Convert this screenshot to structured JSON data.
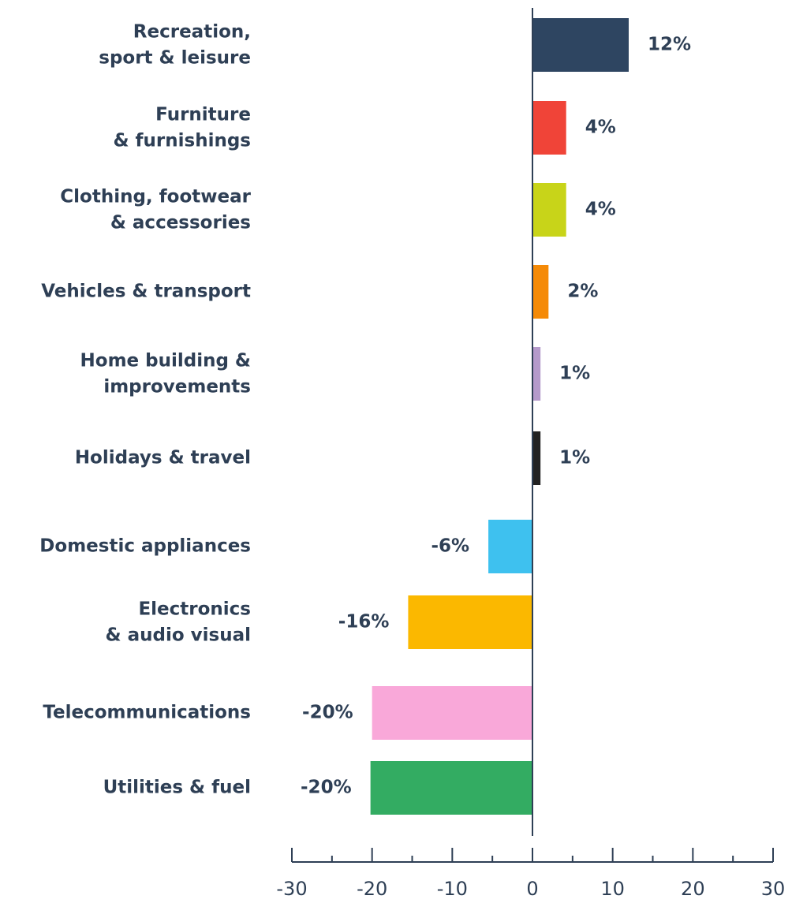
{
  "chart_data": {
    "type": "barh",
    "categories": [
      "Recreation,\nsport & leisure",
      "Furniture\n& furnishings",
      "Clothing, footwear\n& accessories",
      "Vehicles & transport",
      "Home building &\nimprovements",
      "Holidays & travel",
      "Domestic appliances",
      "Electronics\n& audio visual",
      "Telecommunications",
      "Utilities & fuel"
    ],
    "values": [
      12,
      4.2,
      4.2,
      2,
      1,
      1,
      -5.5,
      -15.5,
      -20,
      -20.2
    ],
    "value_labels": [
      "12%",
      "4%",
      "4%",
      "2%",
      "1%",
      "1%",
      "-6%",
      "-16%",
      "-20%",
      "-20%"
    ],
    "colors": [
      "#2e4561",
      "#f04438",
      "#c8d419",
      "#f58a07",
      "#b59acb",
      "#222222",
      "#3ec1ef",
      "#fbb800",
      "#f9a8d9",
      "#33ac62"
    ],
    "xlim": [
      -30,
      30
    ],
    "xticks": [
      -30,
      -20,
      -10,
      0,
      10,
      20,
      30
    ],
    "xminorticks": [
      -25,
      -15,
      -5,
      5,
      15,
      25
    ]
  }
}
